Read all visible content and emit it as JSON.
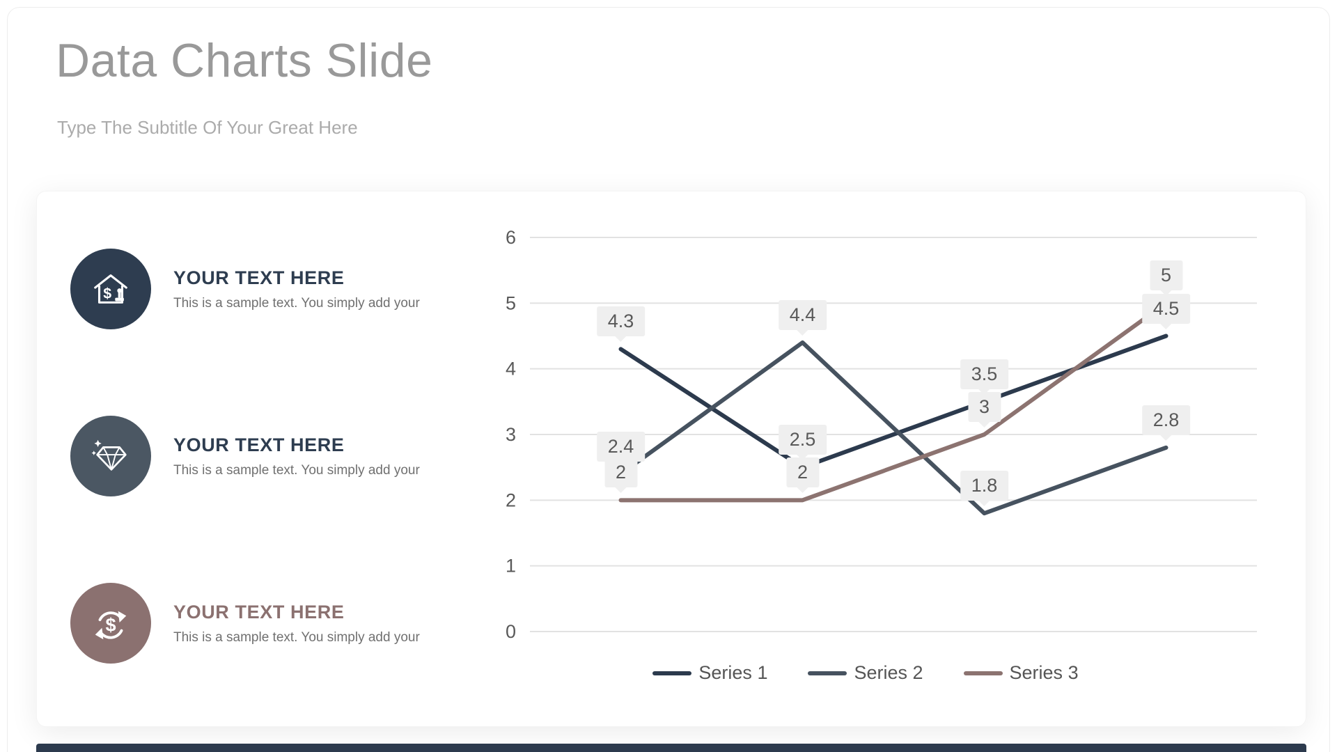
{
  "header": {
    "title": "Data Charts Slide",
    "subtitle": "Type The Subtitle Of Your Great Here"
  },
  "features": [
    {
      "icon": "house-dollar-icon",
      "heading": "YOUR TEXT HERE",
      "body": "This is a sample text. You simply add your",
      "circle_color": "#2e3d50",
      "heading_color": "#2e3d50"
    },
    {
      "icon": "gem-icon",
      "heading": "YOUR TEXT HERE",
      "body": "This is a sample text. You simply add your",
      "circle_color": "#4b5763",
      "heading_color": "#2e3d50"
    },
    {
      "icon": "dollar-refresh-icon",
      "heading": "YOUR TEXT HERE",
      "body": "This is a sample text. You simply add your",
      "circle_color": "#8b7170",
      "heading_color": "#8b7170"
    }
  ],
  "chart_data": {
    "type": "line",
    "x": [
      1,
      2,
      3,
      4
    ],
    "series": [
      {
        "name": "Series 1",
        "color": "#2c3a4d",
        "values": [
          4.3,
          2.5,
          3.5,
          4.5
        ]
      },
      {
        "name": "Series 2",
        "color": "#46525f",
        "values": [
          2.4,
          4.4,
          1.8,
          2.8
        ]
      },
      {
        "name": "Series 3",
        "color": "#8c7370",
        "values": [
          2,
          2,
          3,
          5
        ]
      }
    ],
    "ylim": [
      0,
      6
    ],
    "yticks": [
      0,
      1,
      2,
      3,
      4,
      5,
      6
    ],
    "grid": true,
    "gridline_color": "#e2e2e2",
    "legend_position": "bottom",
    "data_labels": true,
    "label_bg": "#efefef"
  }
}
